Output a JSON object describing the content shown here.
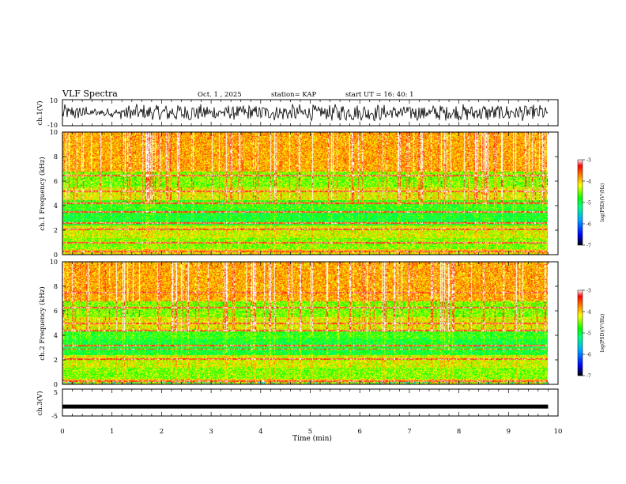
{
  "header": {
    "title": "VLF Spectra",
    "date": "Oct. 1 , 2025",
    "station": "station= KAP",
    "start": "start  UT =  16: 40: 1"
  },
  "chart_data": [
    {
      "type": "line",
      "name": "ch1-waveform",
      "ylabel": "ch.1(V)",
      "ylim": [
        -10,
        10
      ],
      "ytick_labels": [
        "10",
        "-10"
      ],
      "xlim": [
        0,
        9.8
      ]
    },
    {
      "type": "heatmap",
      "name": "ch1-spectrogram",
      "ylabel": "ch.1 Frequency (kHz)",
      "ylim": [
        0,
        10
      ],
      "yticks": [
        0,
        2,
        4,
        6,
        8,
        10
      ],
      "xlim": [
        0,
        9.8
      ],
      "colorbar": {
        "label": "log(PSD)(V²/Hz)",
        "range": [
          -7,
          -3
        ],
        "ticks": [
          "-3",
          "-4",
          "-5",
          "-6",
          "-7"
        ]
      }
    },
    {
      "type": "heatmap",
      "name": "ch2-spectrogram",
      "ylabel": "ch.2 Frequency (kHz)",
      "ylim": [
        0,
        10
      ],
      "yticks": [
        0,
        2,
        4,
        6,
        8,
        10
      ],
      "xlim": [
        0,
        9.8
      ],
      "colorbar": {
        "label": "log(PSD)(V²/Hz)",
        "range": [
          -7,
          -3
        ],
        "ticks": [
          "-3",
          "-4",
          "-5",
          "-6",
          "-7"
        ]
      }
    },
    {
      "type": "line",
      "name": "ch3-level",
      "ylabel": "ch.3(V)",
      "ylim": [
        -5,
        5
      ],
      "ytick_labels": [
        "5",
        "-5"
      ],
      "level": -1.5,
      "xlim": [
        0,
        9.8
      ]
    }
  ],
  "xaxis": {
    "label": "Time  (min)",
    "range": [
      0,
      10
    ],
    "ticks": [
      "0",
      "1",
      "2",
      "3",
      "4",
      "5",
      "6",
      "7",
      "8",
      "9",
      "10"
    ]
  },
  "colors": {
    "palette": [
      "#000000",
      "#0000ff",
      "#00aaff",
      "#00ff80",
      "#00ff00",
      "#ffff00",
      "#ff8000",
      "#ff0000",
      "#ffffff"
    ]
  }
}
